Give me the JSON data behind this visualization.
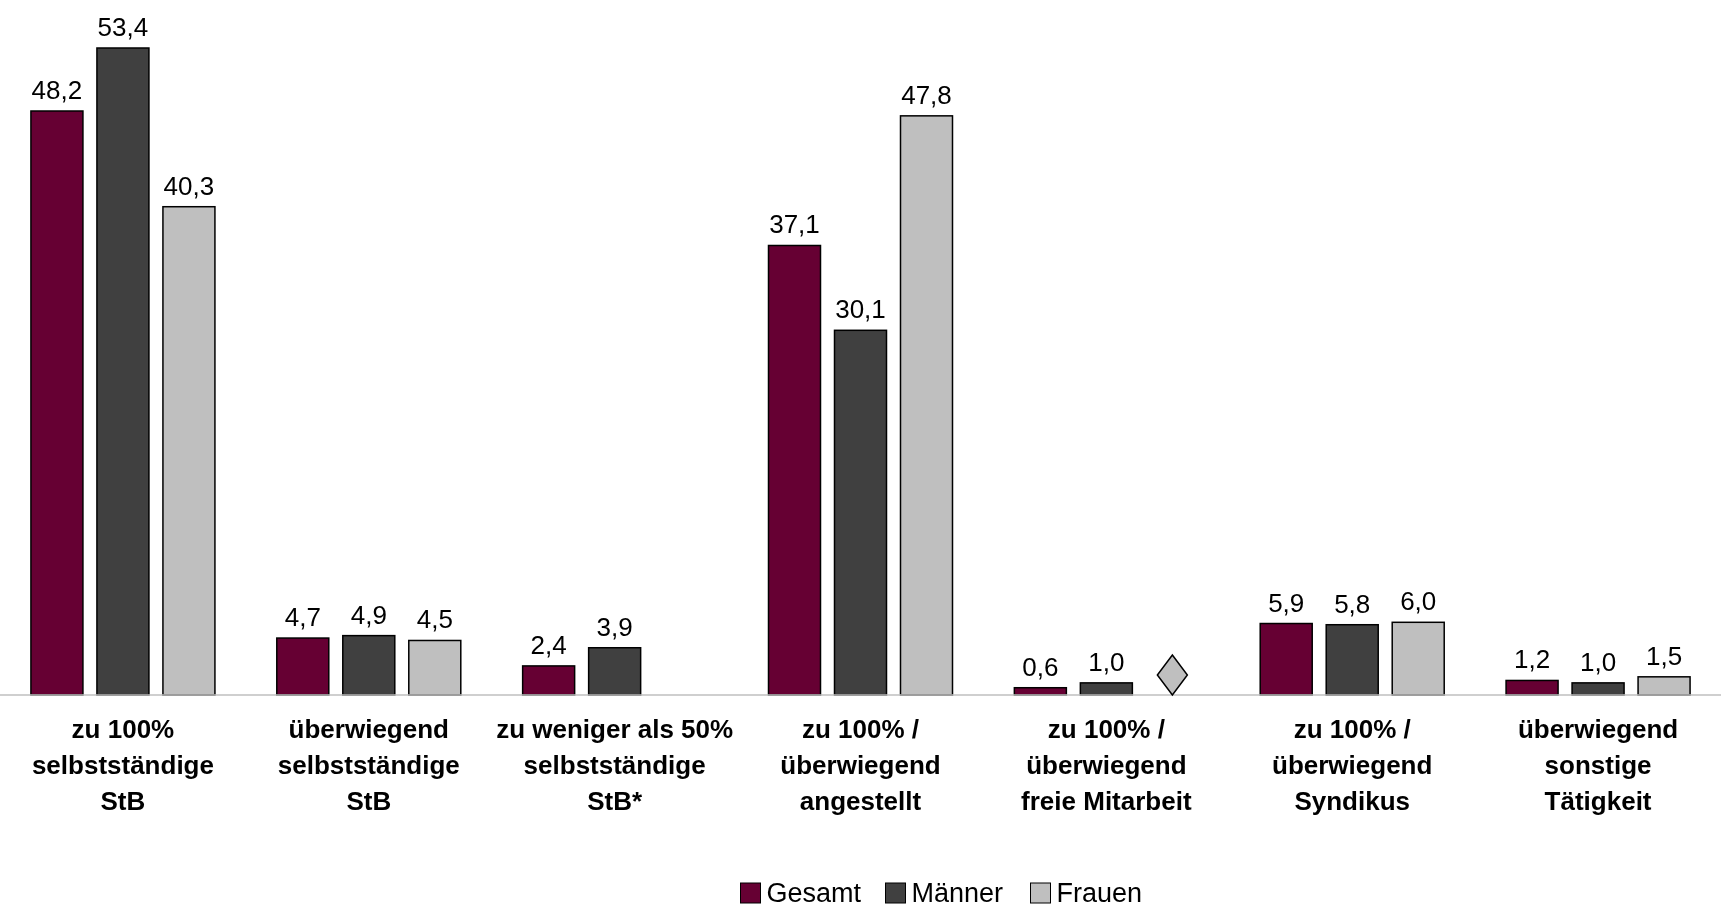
{
  "chart_data": {
    "type": "bar",
    "categories": [
      "zu 100%\nselbstständige\nStB",
      "überwiegend\nselbstständige\nStB",
      "zu weniger als 50%\nselbstständige\nStB*",
      "zu 100% /\nüberwiegend\nangestellt",
      "zu 100% /\nüberwiegend\nfreie Mitarbeit",
      "zu 100% /\nüberwiegend\nSyndikus",
      "überwiegend\nsonstige\nTätigkeit"
    ],
    "series": [
      {
        "name": "Gesamt",
        "color": "#660033",
        "values": [
          48.2,
          4.7,
          2.4,
          37.1,
          0.6,
          5.9,
          1.2
        ],
        "value_labels": [
          "48,2",
          "4,7",
          "2,4",
          "37,1",
          "0,6",
          "5,9",
          "1,2"
        ]
      },
      {
        "name": "Männer",
        "color": "#404040",
        "values": [
          53.4,
          4.9,
          3.9,
          30.1,
          1.0,
          5.8,
          1.0
        ],
        "value_labels": [
          "53,4",
          "4,9",
          "3,9",
          "30,1",
          "1,0",
          "5,8",
          "1,0"
        ]
      },
      {
        "name": "Frauen",
        "color": "#bfbfbf",
        "values": [
          40.3,
          4.5,
          null,
          47.8,
          null,
          6.0,
          1.5
        ],
        "value_labels": [
          "40,3",
          "4,5",
          null,
          "47,8",
          null,
          "6,0",
          "1,5"
        ]
      }
    ],
    "legend": "bottom"
  }
}
